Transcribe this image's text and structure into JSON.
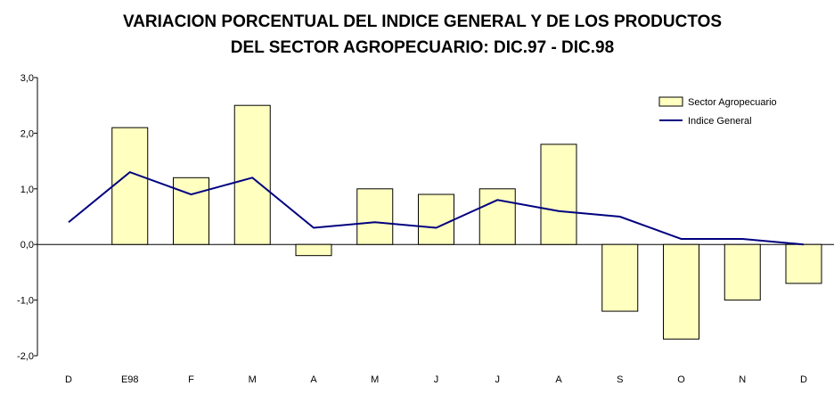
{
  "chart_data": {
    "type": "bar",
    "title_lines": [
      "VARIACION PORCENTUAL DEL INDICE GENERAL Y DE LOS PRODUCTOS",
      "DEL SECTOR AGROPECUARIO: DIC.97 - DIC.98"
    ],
    "categories": [
      "D",
      "E98",
      "F",
      "M",
      "A",
      "M",
      "J",
      "J",
      "A",
      "S",
      "O",
      "N",
      "D"
    ],
    "series": [
      {
        "name": "Sector Agropecuario",
        "type": "bar",
        "color": "#ffffc0",
        "values": [
          null,
          2.1,
          1.2,
          2.5,
          -0.2,
          1.0,
          0.9,
          1.0,
          1.8,
          -1.2,
          -1.7,
          -1.0,
          -0.7
        ]
      },
      {
        "name": "Indice General",
        "type": "line",
        "color": "#000080",
        "values": [
          0.4,
          1.3,
          0.9,
          1.2,
          0.3,
          0.4,
          0.3,
          0.8,
          0.6,
          0.5,
          0.1,
          0.1,
          0.0
        ]
      }
    ],
    "ylim": [
      -2.0,
      3.0
    ],
    "yticks": [
      "3,0",
      "2,0",
      "1,0",
      "0,0",
      "-1,0",
      "-2,0"
    ],
    "ytick_values": [
      3.0,
      2.0,
      1.0,
      0.0,
      -1.0,
      -2.0
    ],
    "grid": false,
    "legend_position": "top-right"
  }
}
